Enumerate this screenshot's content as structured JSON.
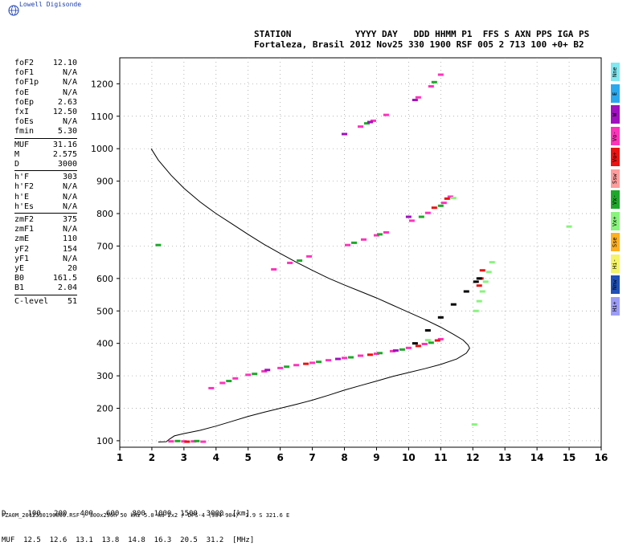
{
  "brand": {
    "name": "Lowell Digisonde",
    "logo_icon": "globe-icon"
  },
  "header": {
    "line1": "STATION            YYYY DAY   DDD HHMM P1  FFS S AXN PPS IGA PS",
    "line2": "Fortaleza, Brasil 2012 Nov25 330 1900 RSF 005 2 713 100 +0+ B2"
  },
  "params": [
    {
      "k": "foF2",
      "v": "12.10"
    },
    {
      "k": "foF1",
      "v": "N/A"
    },
    {
      "k": "foF1p",
      "v": "N/A"
    },
    {
      "k": "foE",
      "v": "N/A"
    },
    {
      "k": "foEp",
      "v": "2.63"
    },
    {
      "k": "fxI",
      "v": "12.50"
    },
    {
      "k": "foEs",
      "v": "N/A"
    },
    {
      "k": "fmin",
      "v": "5.30"
    },
    {
      "k": "MUF",
      "v": "31.16"
    },
    {
      "k": "M",
      "v": "2.575"
    },
    {
      "k": "D",
      "v": "3000"
    },
    {
      "k": "h'F",
      "v": "303"
    },
    {
      "k": "h'F2",
      "v": "N/A"
    },
    {
      "k": "h'E",
      "v": "N/A"
    },
    {
      "k": "h'Es",
      "v": "N/A"
    },
    {
      "k": "zmF2",
      "v": "375"
    },
    {
      "k": "zmF1",
      "v": "N/A"
    },
    {
      "k": "zmE",
      "v": "110"
    },
    {
      "k": "yF2",
      "v": "154"
    },
    {
      "k": "yF1",
      "v": "N/A"
    },
    {
      "k": "yE",
      "v": "20"
    },
    {
      "k": "B0",
      "v": "161.5"
    },
    {
      "k": "B1",
      "v": "2.04"
    },
    {
      "k": "C-level",
      "v": "51"
    }
  ],
  "legend": [
    {
      "label": "Nne",
      "color": "#7fe8f0"
    },
    {
      "label": "E",
      "color": "#2aa8ee"
    },
    {
      "label": "W",
      "color": "#a010c0"
    },
    {
      "label": "Vo-",
      "color": "#ff33bb"
    },
    {
      "label": "Vo+",
      "color": "#ee1111"
    },
    {
      "label": "Ssw",
      "color": "#ff9c9c"
    },
    {
      "label": "Vx-",
      "color": "#1ea82a"
    },
    {
      "label": "Vx+",
      "color": "#88f47c"
    },
    {
      "label": "Sse",
      "color": "#ffb020"
    },
    {
      "label": "Hi-",
      "color": "#f4f466"
    },
    {
      "label": "Nnw",
      "color": "#2050b8"
    },
    {
      "label": "Hi+",
      "color": "#9c9cf8"
    }
  ],
  "distance_table": {
    "line1": "D     100   200   400   600   800  1000  1500  3000  [km]",
    "line2": "MUF  12.5  12.6  13.1  13.8  14.8  16.3  20.5  31.2  [MHz]"
  },
  "filename": "FZA0M_2012330190000.RSF / 300x256h 50 kHz 5.0 km 2x2 / DPS-4 (904-904)  3.9 S 321.6 E",
  "chart_data": {
    "type": "scatter",
    "title": "",
    "xlabel": "",
    "ylabel": "",
    "xlim": [
      1,
      16
    ],
    "ylim": [
      80,
      1280
    ],
    "xticks": [
      1,
      2,
      3,
      4,
      5,
      6,
      7,
      8,
      9,
      10,
      11,
      12,
      13,
      14,
      15,
      16
    ],
    "yticks": [
      100,
      200,
      300,
      400,
      500,
      600,
      700,
      800,
      900,
      1000,
      1100,
      1200
    ],
    "grid": "dotted",
    "series": [
      {
        "color": "#ff33bb",
        "points": [
          [
            3.85,
            262
          ],
          [
            4.2,
            278
          ],
          [
            4.6,
            292
          ],
          [
            5.0,
            303
          ],
          [
            5.5,
            314
          ],
          [
            6.0,
            324
          ],
          [
            6.5,
            333
          ],
          [
            7.0,
            340
          ],
          [
            7.5,
            348
          ],
          [
            8.0,
            355
          ],
          [
            8.5,
            362
          ],
          [
            9.0,
            368
          ],
          [
            9.5,
            376
          ],
          [
            10.0,
            386
          ],
          [
            10.5,
            398
          ],
          [
            11.0,
            413
          ],
          [
            8.1,
            703
          ],
          [
            8.6,
            720
          ],
          [
            9.0,
            733
          ],
          [
            9.3,
            742
          ],
          [
            10.1,
            778
          ],
          [
            10.6,
            802
          ],
          [
            11.1,
            833
          ],
          [
            11.3,
            852
          ],
          [
            8.5,
            1068
          ],
          [
            8.9,
            1086
          ],
          [
            9.3,
            1104
          ],
          [
            10.3,
            1158
          ],
          [
            10.7,
            1192
          ],
          [
            11.0,
            1228
          ],
          [
            5.8,
            628
          ],
          [
            6.3,
            648
          ],
          [
            6.9,
            668
          ],
          [
            2.6,
            98
          ],
          [
            3.0,
            98
          ],
          [
            3.3,
            98
          ],
          [
            3.6,
            97
          ]
        ]
      },
      {
        "color": "#1ea82a",
        "points": [
          [
            4.4,
            284
          ],
          [
            5.2,
            306
          ],
          [
            6.2,
            328
          ],
          [
            7.2,
            343
          ],
          [
            8.2,
            357
          ],
          [
            9.1,
            370
          ],
          [
            9.8,
            381
          ],
          [
            10.7,
            402
          ],
          [
            8.3,
            710
          ],
          [
            9.1,
            736
          ],
          [
            10.4,
            790
          ],
          [
            11.0,
            824
          ],
          [
            8.7,
            1078
          ],
          [
            10.8,
            1205
          ],
          [
            6.6,
            655
          ],
          [
            2.2,
            703
          ],
          [
            2.8,
            99
          ],
          [
            3.4,
            99
          ]
        ]
      },
      {
        "color": "#ee1111",
        "points": [
          [
            6.8,
            337
          ],
          [
            8.8,
            365
          ],
          [
            10.3,
            392
          ],
          [
            10.9,
            409
          ],
          [
            10.8,
            818
          ],
          [
            11.2,
            846
          ],
          [
            12.25,
            600
          ],
          [
            12.3,
            625
          ],
          [
            12.2,
            578
          ],
          [
            3.1,
            97
          ]
        ]
      },
      {
        "color": "#88f47c",
        "points": [
          [
            12.1,
            500
          ],
          [
            12.2,
            530
          ],
          [
            12.3,
            560
          ],
          [
            12.4,
            590
          ],
          [
            12.5,
            620
          ],
          [
            12.6,
            650
          ],
          [
            11.4,
            848
          ],
          [
            10.6,
            410
          ],
          [
            15.0,
            760
          ],
          [
            12.05,
            150
          ]
        ]
      },
      {
        "color": "#a010c0",
        "points": [
          [
            5.6,
            318
          ],
          [
            7.8,
            352
          ],
          [
            9.6,
            378
          ],
          [
            8.8,
            1082
          ],
          [
            10.2,
            1150
          ],
          [
            8.0,
            1045
          ],
          [
            10.0,
            790
          ]
        ]
      },
      {
        "color": "#000000",
        "points": [
          [
            10.2,
            400
          ],
          [
            10.6,
            440
          ],
          [
            11.0,
            480
          ],
          [
            11.4,
            520
          ],
          [
            11.8,
            560
          ],
          [
            12.1,
            590
          ],
          [
            12.2,
            600
          ]
        ]
      }
    ],
    "trace": [
      [
        1.98,
        1000
      ],
      [
        2.2,
        965
      ],
      [
        2.6,
        918
      ],
      [
        3.0,
        878
      ],
      [
        3.5,
        836
      ],
      [
        4.0,
        800
      ],
      [
        4.5,
        768
      ],
      [
        5.0,
        736
      ],
      [
        5.5,
        705
      ],
      [
        6.0,
        677
      ],
      [
        6.5,
        650
      ],
      [
        7.0,
        625
      ],
      [
        7.5,
        601
      ],
      [
        8.0,
        580
      ],
      [
        8.5,
        560
      ],
      [
        9.0,
        540
      ],
      [
        9.5,
        518
      ],
      [
        10.0,
        496
      ],
      [
        10.5,
        474
      ],
      [
        11.0,
        450
      ],
      [
        11.4,
        428
      ],
      [
        11.7,
        410
      ],
      [
        11.85,
        395
      ],
      [
        11.9,
        385
      ],
      [
        11.8,
        370
      ],
      [
        11.5,
        352
      ],
      [
        11.0,
        335
      ],
      [
        10.5,
        322
      ],
      [
        10.0,
        310
      ],
      [
        9.5,
        298
      ],
      [
        9.0,
        284
      ],
      [
        8.5,
        270
      ],
      [
        8.0,
        256
      ],
      [
        7.5,
        240
      ],
      [
        7.0,
        225
      ],
      [
        6.5,
        212
      ],
      [
        6.0,
        200
      ],
      [
        5.5,
        188
      ],
      [
        5.0,
        175
      ],
      [
        4.5,
        160
      ],
      [
        4.0,
        145
      ],
      [
        3.5,
        132
      ],
      [
        3.0,
        122
      ],
      [
        2.7,
        115
      ],
      [
        2.55,
        105
      ],
      [
        2.45,
        97
      ],
      [
        2.2,
        96
      ]
    ]
  }
}
